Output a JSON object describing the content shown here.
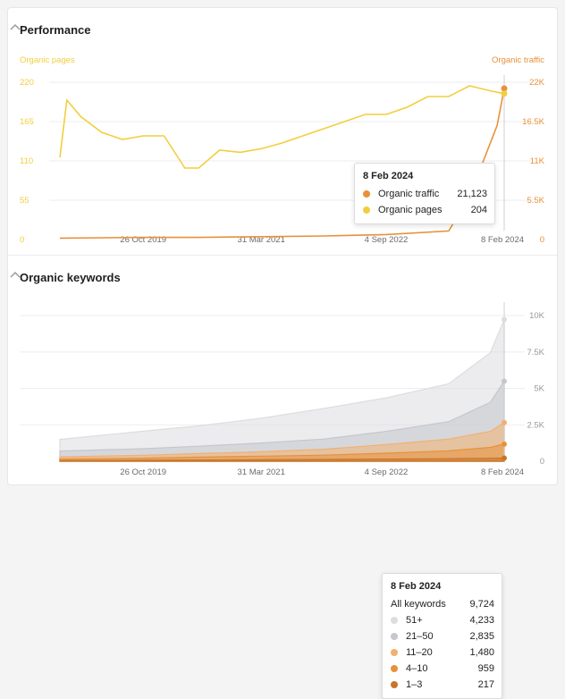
{
  "performance": {
    "title": "Performance",
    "left_axis_label": "Organic pages",
    "right_axis_label": "Organic traffic",
    "left_ticks": [
      "220",
      "165",
      "110",
      "55",
      "0"
    ],
    "right_ticks": [
      "22K",
      "16.5K",
      "11K",
      "5.5K",
      "0"
    ],
    "x_ticks": [
      "26 Oct 2019",
      "31 Mar 2021",
      "4 Sep 2022",
      "8 Feb 2024"
    ],
    "tooltip": {
      "date": "8 Feb 2024",
      "rows": [
        {
          "label": "Organic traffic",
          "value": "21,123"
        },
        {
          "label": "Organic pages",
          "value": "204"
        }
      ]
    }
  },
  "keywords": {
    "title": "Organic keywords",
    "right_ticks": [
      "10K",
      "7.5K",
      "5K",
      "2.5K",
      "0"
    ],
    "x_ticks": [
      "26 Oct 2019",
      "31 Mar 2021",
      "4 Sep 2022",
      "8 Feb 2024"
    ],
    "tooltip": {
      "date": "8 Feb 2024",
      "total_label": "All keywords",
      "total_value": "9,724",
      "rows": [
        {
          "label": "51+",
          "value": "4,233"
        },
        {
          "label": "21–50",
          "value": "2,835"
        },
        {
          "label": "11–20",
          "value": "1,480"
        },
        {
          "label": "4–10",
          "value": "959"
        },
        {
          "label": "1–3",
          "value": "217"
        }
      ]
    }
  },
  "colors": {
    "pages": "#f2ce3e",
    "traffic": "#e8913a",
    "kw_51plus": "#dcdde0",
    "kw_21_50": "#c4c7cc",
    "kw_11_20": "#f2b070",
    "kw_4_10": "#e8913a",
    "kw_1_3": "#c8752a"
  },
  "chart_data": [
    {
      "type": "line",
      "series": [
        {
          "name": "Organic pages",
          "axis": "left",
          "x": [
            "2018-10",
            "2018-11",
            "2019-01",
            "2019-04",
            "2019-07",
            "2019-10",
            "2020-01",
            "2020-04",
            "2020-06",
            "2020-09",
            "2020-12",
            "2021-03",
            "2021-06",
            "2021-09",
            "2021-12",
            "2022-03",
            "2022-06",
            "2022-09",
            "2022-12",
            "2023-03",
            "2023-06",
            "2023-09",
            "2023-12",
            "2024-02"
          ],
          "values": [
            115,
            195,
            172,
            150,
            140,
            145,
            145,
            100,
            100,
            125,
            122,
            127,
            135,
            145,
            155,
            165,
            175,
            175,
            185,
            200,
            200,
            215,
            208,
            204
          ]
        },
        {
          "name": "Organic traffic",
          "axis": "right",
          "x": [
            "2018-10",
            "2019-10",
            "2020-06",
            "2021-03",
            "2021-12",
            "2022-09",
            "2023-06",
            "2023-09",
            "2023-11",
            "2024-01",
            "2024-02"
          ],
          "values": [
            200,
            300,
            300,
            400,
            500,
            700,
            1200,
            6000,
            11000,
            16000,
            21123
          ]
        }
      ],
      "left_ylim": [
        0,
        220
      ],
      "right_ylim": [
        0,
        22000
      ]
    },
    {
      "type": "area",
      "x": [
        "2018-10",
        "2019-10",
        "2020-06",
        "2021-03",
        "2021-12",
        "2022-09",
        "2023-06",
        "2023-12",
        "2024-02"
      ],
      "series": [
        {
          "name": "51+",
          "values": [
            800,
            1200,
            1400,
            1700,
            2100,
            2300,
            2600,
            3400,
            4233
          ]
        },
        {
          "name": "21–50",
          "values": [
            400,
            450,
            500,
            600,
            700,
            900,
            1200,
            2000,
            2835
          ]
        },
        {
          "name": "11–20",
          "values": [
            150,
            200,
            250,
            300,
            400,
            600,
            800,
            1100,
            1480
          ]
        },
        {
          "name": "4–10",
          "values": [
            100,
            150,
            200,
            250,
            300,
            400,
            550,
            750,
            959
          ]
        },
        {
          "name": "1–3",
          "values": [
            50,
            60,
            80,
            100,
            120,
            150,
            170,
            200,
            217
          ]
        }
      ],
      "ylim": [
        0,
        10000
      ]
    }
  ]
}
